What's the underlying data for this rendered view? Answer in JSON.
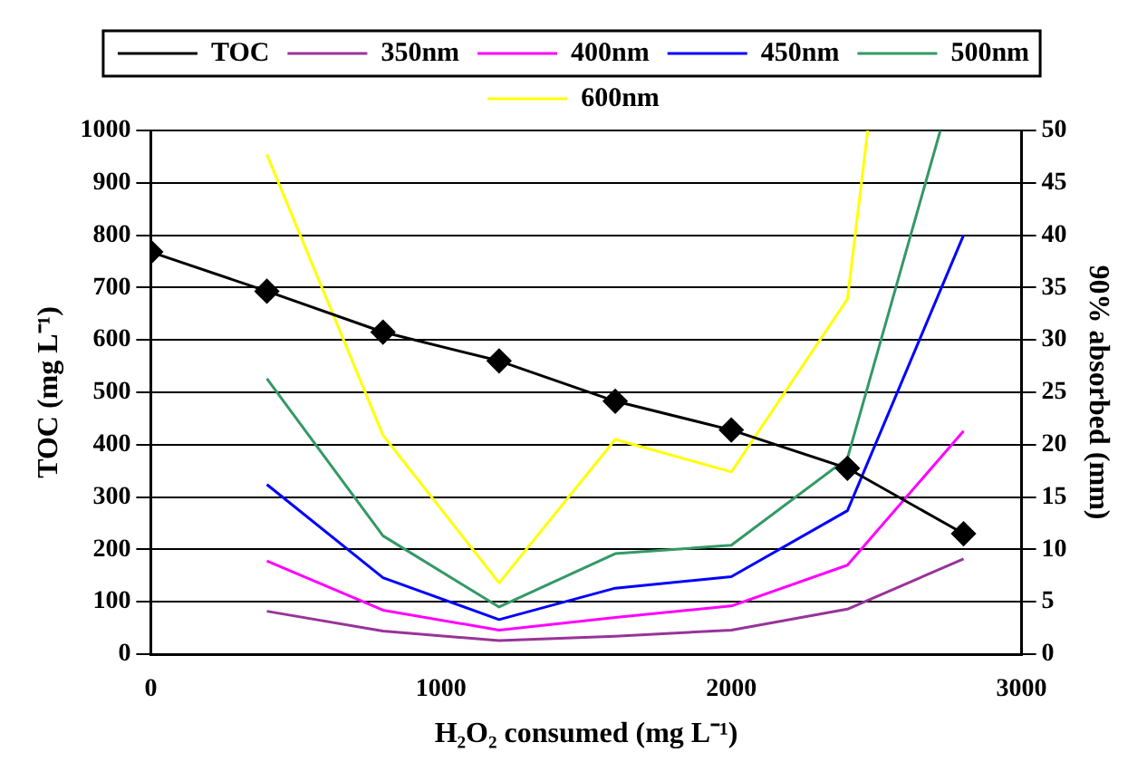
{
  "chart_data": {
    "type": "line",
    "xlabel": "H₂O₂ consumed (mg L⁻¹)",
    "ylabel": "TOC (mg L⁻¹)",
    "y2label": "90% absorbed (mm)",
    "x": [
      0,
      400,
      800,
      1200,
      1600,
      2000,
      2400,
      2800
    ],
    "xlim": [
      0,
      3000
    ],
    "xticks": [
      0,
      1000,
      2000,
      3000
    ],
    "ylim": [
      0,
      1000
    ],
    "yticks": [
      0,
      100,
      200,
      300,
      400,
      500,
      600,
      700,
      800,
      900,
      1000
    ],
    "y2lim": [
      0,
      50
    ],
    "y2ticks": [
      0,
      5,
      10,
      15,
      20,
      25,
      30,
      35,
      40,
      45,
      50
    ],
    "grid": "y",
    "legend": "top",
    "line_style": "solid",
    "series": [
      {
        "name": "TOC",
        "color": "#000000",
        "marker": "diamond",
        "values": [
          768,
          693,
          615,
          560,
          483,
          428,
          355,
          230
        ]
      },
      {
        "name": "350nm",
        "color": "#993399",
        "marker": "none",
        "axis": "y2",
        "x": [
          400,
          800,
          1200,
          1600,
          2000,
          2400,
          2800
        ],
        "values": [
          4.1,
          2.2,
          1.3,
          1.7,
          2.3,
          4.3,
          9.1
        ]
      },
      {
        "name": "400nm",
        "color": "#ff00ff",
        "marker": "none",
        "axis": "y2",
        "x": [
          400,
          800,
          1200,
          1600,
          2000,
          2400,
          2800
        ],
        "values": [
          8.9,
          4.2,
          2.3,
          3.5,
          4.6,
          8.5,
          21.3
        ]
      },
      {
        "name": "450nm",
        "color": "#0000ff",
        "marker": "none",
        "axis": "y2",
        "x": [
          400,
          800,
          1200,
          1600,
          2000,
          2400,
          2800
        ],
        "values": [
          16.2,
          7.3,
          3.3,
          6.3,
          7.4,
          13.7,
          40
        ]
      },
      {
        "name": "500nm",
        "color": "#339966",
        "marker": "none",
        "axis": "y2",
        "x": [
          400,
          800,
          1200,
          1600,
          2000,
          2400,
          2720
        ],
        "values": [
          26.3,
          11.3,
          4.5,
          9.6,
          10.4,
          18.7,
          50
        ]
      },
      {
        "name": "600nm",
        "color": "#ffff00",
        "marker": "none",
        "axis": "y2",
        "x": [
          400,
          800,
          1200,
          1600,
          2000,
          2400,
          2470
        ],
        "values": [
          47.7,
          20.9,
          6.8,
          20.5,
          17.4,
          33.9,
          50
        ]
      }
    ]
  }
}
